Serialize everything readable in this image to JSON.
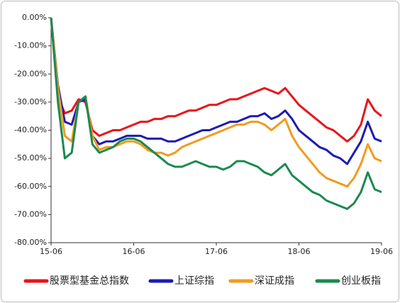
{
  "chart_data": {
    "type": "line",
    "x": [
      0,
      1,
      2,
      3,
      4,
      5,
      6,
      7,
      8,
      9,
      10,
      11,
      12,
      13,
      14,
      15,
      16,
      17,
      18,
      19,
      20,
      21,
      22,
      23,
      24,
      25,
      26,
      27,
      28,
      29,
      30,
      31,
      32,
      33,
      34,
      35,
      36,
      37,
      38,
      39,
      40,
      41,
      42,
      43,
      44,
      45,
      46,
      47,
      48
    ],
    "xlim": [
      0,
      48
    ],
    "xticks": [
      {
        "value": 0,
        "label": "15-06"
      },
      {
        "value": 12,
        "label": "16-06"
      },
      {
        "value": 24,
        "label": "17-06"
      },
      {
        "value": 36,
        "label": "18-06"
      },
      {
        "value": 48,
        "label": "19-06"
      }
    ],
    "ylim": [
      -80,
      0
    ],
    "yticks": [
      {
        "value": 0,
        "label": "0.00%"
      },
      {
        "value": -10,
        "label": "-10.00%"
      },
      {
        "value": -20,
        "label": "-20.00%"
      },
      {
        "value": -30,
        "label": "-30.00%"
      },
      {
        "value": -40,
        "label": "-40.00%"
      },
      {
        "value": -50,
        "label": "-50.00%"
      },
      {
        "value": -60,
        "label": "-60.00%"
      },
      {
        "value": -70,
        "label": "-70.00%"
      },
      {
        "value": -80,
        "label": "-80.00%"
      }
    ],
    "series": [
      {
        "name": "股票型基金总指数",
        "color": "#e8141b",
        "values": [
          0,
          -28,
          -34,
          -33,
          -29,
          -30,
          -40,
          -42,
          -41,
          -40,
          -40,
          -39,
          -38,
          -37,
          -37,
          -36,
          -36,
          -35,
          -35,
          -34,
          -33,
          -33,
          -32,
          -31,
          -31,
          -30,
          -29,
          -29,
          -28,
          -27,
          -26,
          -25,
          -26,
          -27,
          -25,
          -28,
          -31,
          -33,
          -35,
          -37,
          -39,
          -40,
          -42,
          -44,
          -42,
          -38,
          -29,
          -33,
          -35
        ]
      },
      {
        "name": "上证综指",
        "color": "#1c1cb4",
        "values": [
          0,
          -24,
          -37,
          -38,
          -30,
          -29,
          -42,
          -45,
          -44,
          -44,
          -43,
          -42,
          -42,
          -42,
          -43,
          -43,
          -43,
          -44,
          -44,
          -43,
          -42,
          -41,
          -40,
          -40,
          -39,
          -38,
          -37,
          -37,
          -36,
          -35,
          -35,
          -34,
          -36,
          -35,
          -33,
          -36,
          -40,
          -42,
          -44,
          -46,
          -47,
          -49,
          -50,
          -52,
          -48,
          -44,
          -37,
          -43,
          -44
        ]
      },
      {
        "name": "深证成指",
        "color": "#f39a1e",
        "values": [
          0,
          -25,
          -42,
          -44,
          -30,
          -28,
          -42,
          -47,
          -46,
          -46,
          -45,
          -44,
          -44,
          -45,
          -47,
          -48,
          -48,
          -49,
          -48,
          -46,
          -45,
          -44,
          -43,
          -42,
          -41,
          -40,
          -39,
          -38,
          -38,
          -37,
          -37,
          -38,
          -40,
          -38,
          -36,
          -42,
          -46,
          -49,
          -52,
          -55,
          -57,
          -58,
          -59,
          -60,
          -57,
          -52,
          -45,
          -50,
          -51
        ]
      },
      {
        "name": "创业板指",
        "color": "#1a8a50",
        "values": [
          0,
          -30,
          -50,
          -48,
          -30,
          -28,
          -45,
          -48,
          -47,
          -46,
          -44,
          -43,
          -43,
          -44,
          -46,
          -48,
          -50,
          -52,
          -53,
          -53,
          -52,
          -51,
          -52,
          -53,
          -53,
          -54,
          -53,
          -51,
          -51,
          -52,
          -53,
          -55,
          -56,
          -54,
          -52,
          -56,
          -58,
          -60,
          -62,
          -63,
          -65,
          -66,
          -67,
          -68,
          -66,
          -62,
          -55,
          -61,
          -62
        ]
      }
    ]
  }
}
